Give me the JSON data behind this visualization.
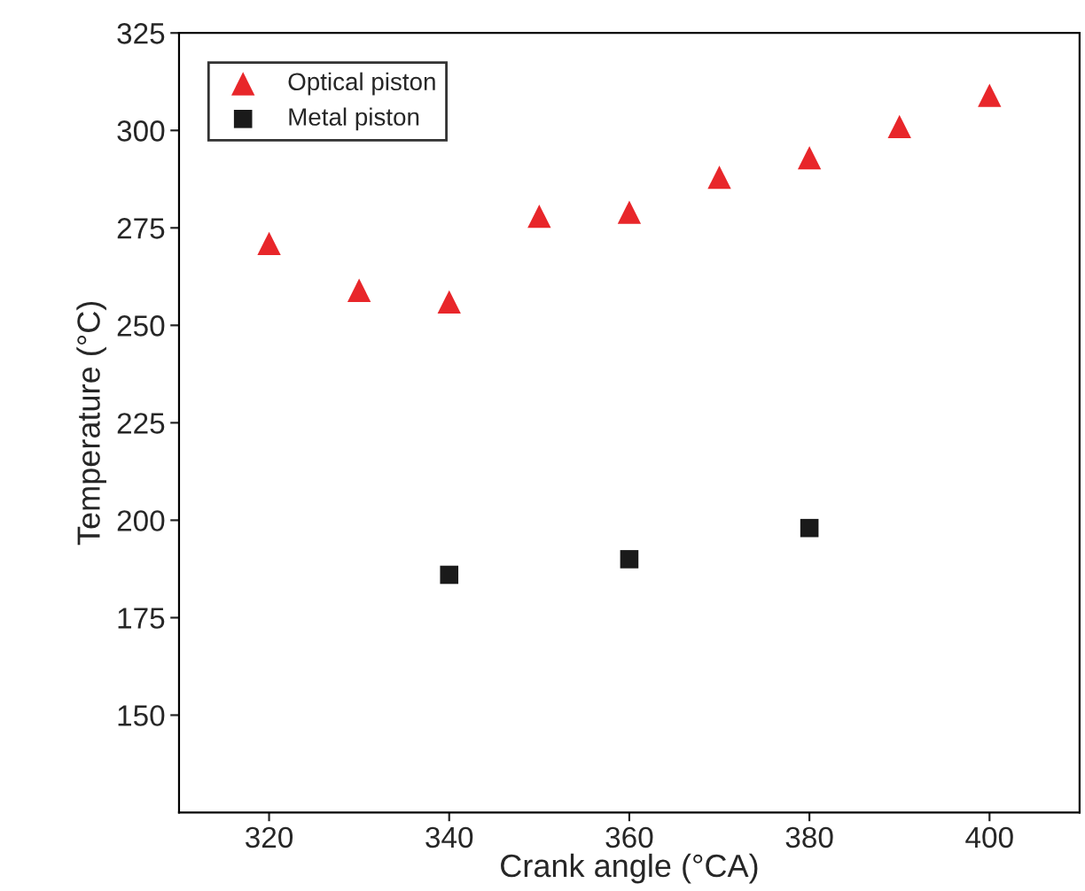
{
  "chart_data": {
    "type": "scatter",
    "xlabel": "Crank angle (°CA)",
    "ylabel": "Temperature (°C)",
    "xlim": [
      310,
      410
    ],
    "xticks": [
      320,
      340,
      360,
      380,
      400
    ],
    "ylim": [
      125,
      325
    ],
    "yticks": [
      150,
      175,
      200,
      225,
      250,
      275,
      300,
      325
    ],
    "grid": false,
    "legend": "top left",
    "series": [
      {
        "name": "Optical piston",
        "color": "#e8262a",
        "marker": "triangle",
        "x": [
          320,
          330,
          340,
          350,
          360,
          370,
          380,
          390,
          400
        ],
        "values": [
          271,
          259,
          256,
          278,
          279,
          288,
          293,
          301,
          309
        ]
      },
      {
        "name": "Metal piston",
        "color": "#1a1a1a",
        "marker": "square",
        "x": [
          340,
          360,
          380
        ],
        "values": [
          186,
          190,
          198
        ]
      }
    ]
  }
}
